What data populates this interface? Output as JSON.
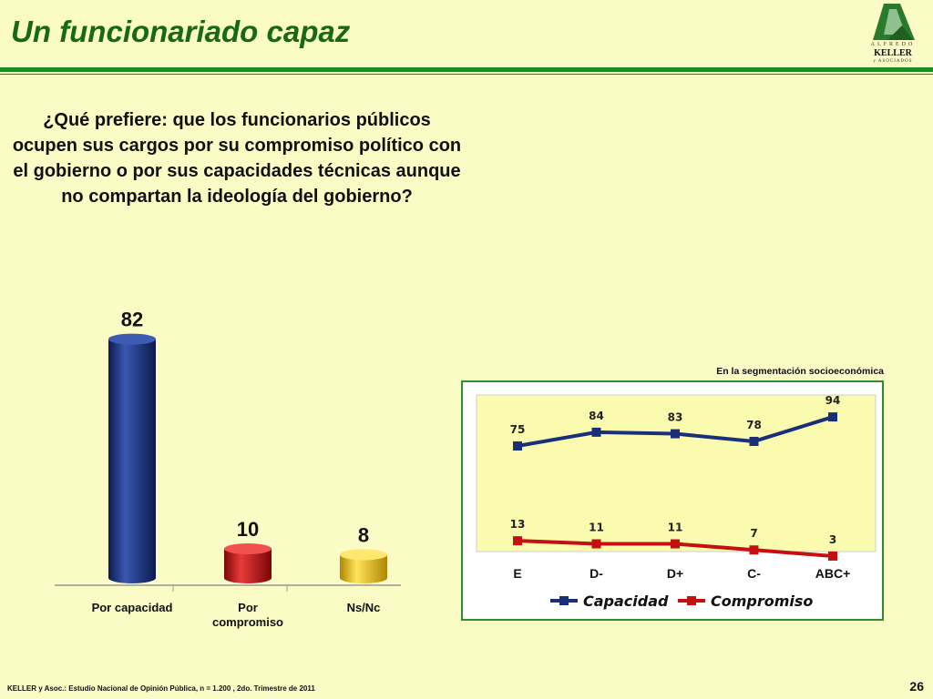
{
  "header": {
    "title": "Un funcionariado capaz",
    "logo": {
      "line1": "ALFREDO",
      "line2": "KELLER",
      "line3": "y ASOCIADOS"
    }
  },
  "question": "¿Qué prefiere: que los funcionarios públicos ocupen sus cargos por su compromiso político con el gobierno o por sus capacidades técnicas aunque no compartan la ideología del gobierno?",
  "footer": {
    "source": "KELLER y Asoc.: Estudio Nacional de Opinión Pública, n = 1.200 , 2do. Trimestre de 2011",
    "page": "26"
  },
  "chart_data": [
    {
      "type": "bar",
      "categories": [
        "Por capacidad",
        "Por compromiso",
        "Ns/Nc"
      ],
      "values": [
        82,
        10,
        8
      ],
      "colors": [
        "#1a2f7a",
        "#c41010",
        "#e8c000"
      ],
      "ylim": [
        0,
        100
      ]
    },
    {
      "type": "line",
      "title": "En la segmentación socioeconómica",
      "categories": [
        "E",
        "D-",
        "D+",
        "C-",
        "ABC+"
      ],
      "series": [
        {
          "name": "Capacidad",
          "values": [
            75,
            84,
            83,
            78,
            94
          ],
          "color": "#1a2f7a"
        },
        {
          "name": "Compromiso",
          "values": [
            13,
            11,
            11,
            7,
            3
          ],
          "color": "#c41010"
        }
      ],
      "ylim": [
        0,
        100
      ],
      "legend": "bottom"
    }
  ]
}
